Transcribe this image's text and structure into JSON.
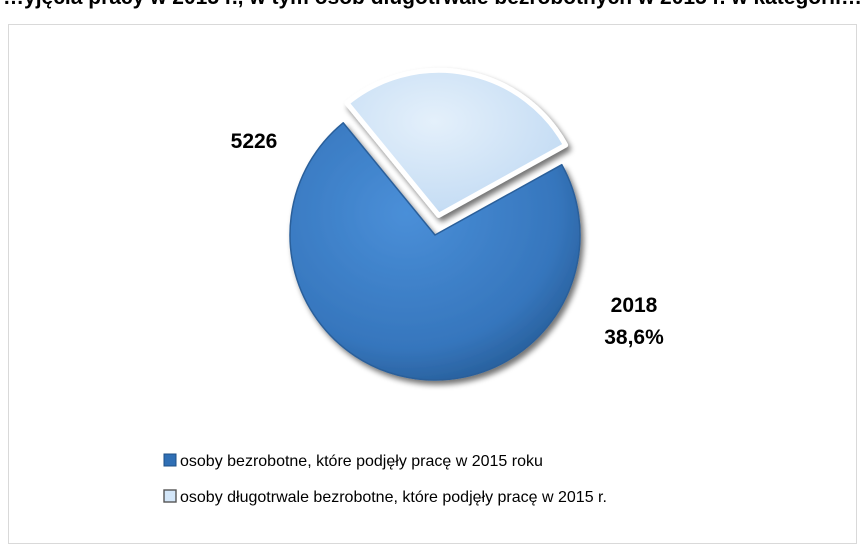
{
  "chart_data": {
    "type": "pie",
    "title": "…yjęcia pracy w 2015 r., w tym osób długotrwale bezrobotnych w 2015 r. w kategorii…",
    "slices": [
      {
        "name": "osoby bezrobotne, które podjęły pracę w 2015 roku",
        "value": 5226,
        "label": "5226",
        "color": "#3b7cc4"
      },
      {
        "name": "osoby długotrwale bezrobotne, które podjęły pracę w 2015 r.",
        "value": 2018,
        "label": "2018",
        "percent_label": "38,6%",
        "color": "#cfe3f7"
      }
    ],
    "legend_position": "bottom-left"
  }
}
